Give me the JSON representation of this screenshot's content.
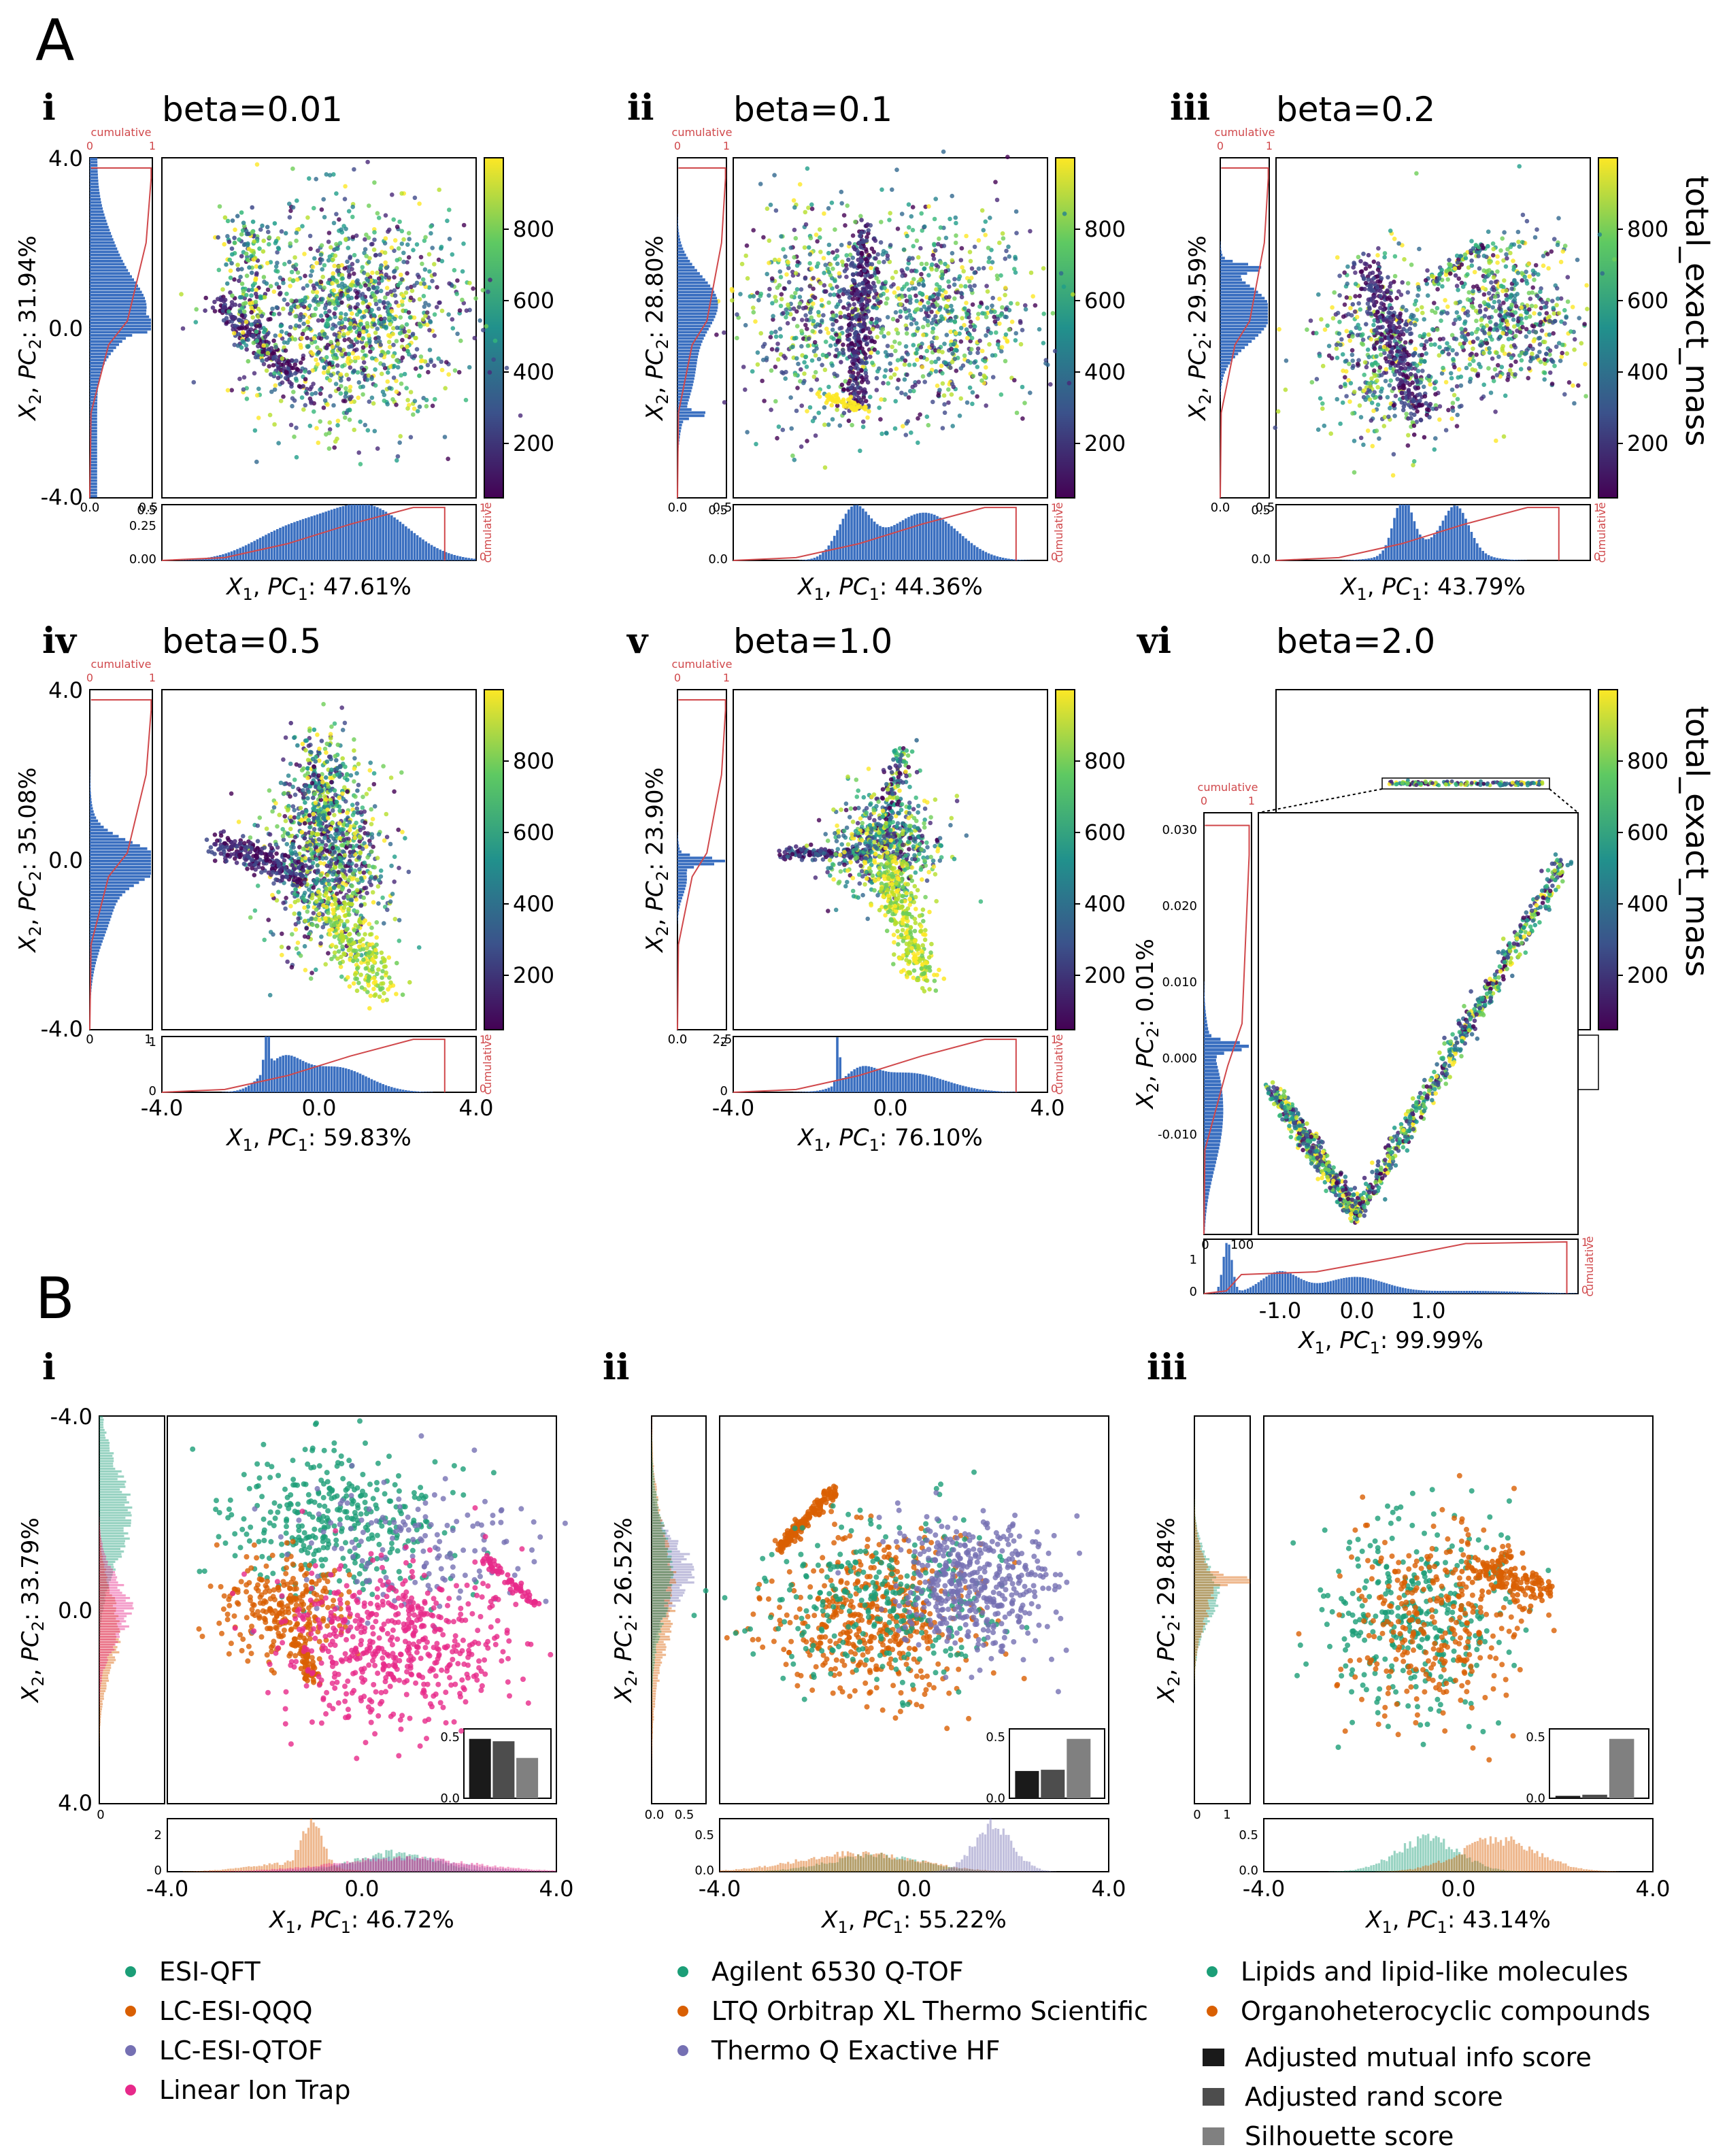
{
  "panels": {
    "A": "A",
    "B": "B",
    "A_sub": [
      "i",
      "ii",
      "iii",
      "iv",
      "v",
      "vi"
    ],
    "B_sub": [
      "i",
      "ii",
      "iii"
    ]
  },
  "colorbar_label": "total_exact_mass",
  "colorbar_ticks": [
    "200",
    "400",
    "600",
    "800"
  ],
  "cumulative_label": "cumulative",
  "colors": {
    "hist": "#3a6fc0",
    "cumulative": "#d0484b",
    "esi_qft": "#1b9e77",
    "lc_esi_qqq": "#d95f02",
    "lc_esi_qtof": "#7570b3",
    "linear_ion_trap": "#e7298a",
    "bar1": "#1a1a1a",
    "bar2": "#4d4d4d",
    "bar3": "#808080"
  },
  "chart_data": [
    {
      "type": "scatter",
      "id": "A-i",
      "title": "beta=0.01",
      "xlabel": "X1, PC1: 47.61%",
      "ylabel": "X2, PC2: 31.94%",
      "y_ticks": [
        "4.0",
        "0.0",
        "-4.0"
      ],
      "side_hist_ticks": [
        "0.0",
        "0.5"
      ],
      "bottom_hist_ticks": [
        "0.00",
        "0.25",
        "0.5"
      ],
      "cumulative_ticks": [
        "0",
        "1"
      ],
      "colorbar_range": [
        50,
        990
      ]
    },
    {
      "type": "scatter",
      "id": "A-ii",
      "title": "beta=0.1",
      "xlabel": "X1, PC1: 44.36%",
      "ylabel": "X2, PC2: 28.80%",
      "side_hist_ticks": [
        "0.0",
        "0.5"
      ],
      "bottom_hist_ticks": [
        "0.0",
        "0.5"
      ],
      "cumulative_ticks": [
        "0",
        "1"
      ]
    },
    {
      "type": "scatter",
      "id": "A-iii",
      "title": "beta=0.2",
      "xlabel": "X1, PC1: 43.79%",
      "ylabel": "X2, PC2: 29.59%",
      "side_hist_ticks": [
        "0.0",
        "0.5"
      ],
      "bottom_hist_ticks": [
        "0.0",
        "0.5"
      ],
      "cumulative_ticks": [
        "0",
        "1"
      ]
    },
    {
      "type": "scatter",
      "id": "A-iv",
      "title": "beta=0.5",
      "xlabel": "X1, PC1: 59.83%",
      "ylabel": "X2, PC2: 35.08%",
      "y_ticks": [
        "4.0",
        "0.0",
        "-4.0"
      ],
      "x_ticks": [
        "-4.0",
        "0.0",
        "4.0"
      ],
      "side_hist_ticks": [
        "0",
        "1"
      ],
      "bottom_hist_ticks": [
        "0",
        "1"
      ],
      "cumulative_ticks": [
        "0",
        "1"
      ]
    },
    {
      "type": "scatter",
      "id": "A-v",
      "title": "beta=1.0",
      "xlabel": "X1, PC1: 76.10%",
      "ylabel": "X2, PC2: 23.90%",
      "x_ticks": [
        "-4.0",
        "0.0",
        "4.0"
      ],
      "side_hist_ticks": [
        "0.0",
        "2.5"
      ],
      "bottom_hist_ticks": [
        "0",
        "2"
      ],
      "cumulative_ticks": [
        "0",
        "1"
      ]
    },
    {
      "type": "scatter",
      "id": "A-vi",
      "title": "beta=2.0",
      "xlabel": "X1, PC1: 99.99%",
      "ylabel": "X2, PC2: 0.01%",
      "x_ticks": [
        "-1.0",
        "0.0",
        "1.0"
      ],
      "y_ticks": [
        "0.030",
        "0.020",
        "0.010",
        "0.000",
        "-0.010"
      ],
      "side_hist_ticks": [
        "0",
        "100"
      ],
      "bottom_hist_ticks": [
        "0",
        "1"
      ],
      "cumulative_ticks": [
        "0",
        "1"
      ]
    },
    {
      "type": "scatter",
      "id": "B-i",
      "xlabel": "X1, PC1: 46.72%",
      "ylabel": "X2, PC2: 33.79%",
      "y_ticks": [
        "-4.0",
        "0.0",
        "4.0"
      ],
      "x_ticks": [
        "-4.0",
        "0.0",
        "4.0"
      ],
      "side_hist_ticks": [
        "0"
      ],
      "bottom_hist_ticks": [
        "0",
        "2"
      ],
      "inset_ticks": [
        "0.5",
        "0.0"
      ],
      "series": [
        {
          "name": "ESI-QFT"
        },
        {
          "name": "LC-ESI-QQQ"
        },
        {
          "name": "LC-ESI-QTOF"
        },
        {
          "name": "Linear Ion Trap"
        }
      ],
      "scores": [
        0.5,
        0.48,
        0.34
      ]
    },
    {
      "type": "scatter",
      "id": "B-ii",
      "xlabel": "X1, PC1: 55.22%",
      "ylabel": "X2, PC2: 26.52%",
      "x_ticks": [
        "-4.0",
        "0.0",
        "4.0"
      ],
      "side_hist_ticks": [
        "0.0",
        "0.5"
      ],
      "bottom_hist_ticks": [
        "0.0",
        "0.5"
      ],
      "inset_ticks": [
        "0.5",
        "0.0"
      ],
      "series": [
        {
          "name": "Agilent 6530 Q-TOF"
        },
        {
          "name": "LTQ Orbitrap XL Thermo Scientific"
        },
        {
          "name": "Thermo Q Exactive HF"
        }
      ],
      "scores": [
        0.23,
        0.24,
        0.5
      ]
    },
    {
      "type": "scatter",
      "id": "B-iii",
      "xlabel": "X1, PC1: 43.14%",
      "ylabel": "X2, PC2: 29.84%",
      "x_ticks": [
        "-4.0",
        "0.0",
        "4.0"
      ],
      "side_hist_ticks": [
        "0",
        "1"
      ],
      "bottom_hist_ticks": [
        "0.0",
        "0.5"
      ],
      "inset_ticks": [
        "0.5",
        "0.0"
      ],
      "series": [
        {
          "name": "Lipids and lipid-like molecules"
        },
        {
          "name": "Organoheterocyclic compounds"
        }
      ],
      "scores": [
        0.02,
        0.03,
        0.5
      ]
    }
  ],
  "legends": {
    "bi": [
      "ESI-QFT",
      "LC-ESI-QQQ",
      "LC-ESI-QTOF",
      "Linear Ion Trap"
    ],
    "bii": [
      "Agilent 6530 Q-TOF",
      "LTQ Orbitrap XL Thermo Scientific",
      "Thermo Q Exactive HF"
    ],
    "biii": [
      "Lipids and lipid-like molecules",
      "Organoheterocyclic compounds"
    ],
    "scores": [
      "Adjusted mutual info score",
      "Adjusted rand score",
      "Silhouette score"
    ]
  }
}
